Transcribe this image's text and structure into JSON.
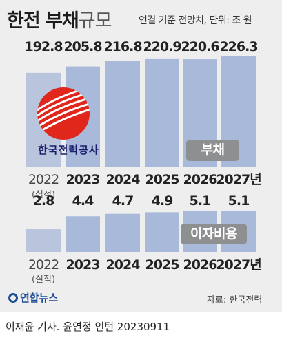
{
  "title": {
    "bold": "한전 부채",
    "light": "규모"
  },
  "subtitle": "연결 기준 전망치, 단위: 조 원",
  "logo": {
    "text": "한국전력공사"
  },
  "chart_data": [
    {
      "type": "bar",
      "name_tag": "부채",
      "categories": [
        "2022",
        "2023",
        "2024",
        "2025",
        "2026",
        "2027년"
      ],
      "category_notes": [
        "(실적)",
        "",
        "",
        "",
        "",
        ""
      ],
      "values": [
        192.8,
        205.8,
        216.8,
        220.9,
        220.6,
        226.3
      ],
      "value_labels": [
        "192.8",
        "205.8",
        "216.8",
        "220.9",
        "220.6",
        "226.3"
      ],
      "colors": {
        "actual": "#b9c5dc",
        "forecast": "#a9b9da"
      }
    },
    {
      "type": "bar",
      "name_tag": "이자비용",
      "categories": [
        "2022",
        "2023",
        "2024",
        "2025",
        "2026",
        "2027년"
      ],
      "category_notes": [
        "(실적)",
        "",
        "",
        "",
        "",
        ""
      ],
      "values": [
        2.8,
        4.4,
        4.7,
        4.9,
        5.1,
        5.1
      ],
      "value_labels": [
        "2.8",
        "4.4",
        "4.7",
        "4.9",
        "5.1",
        "5.1"
      ],
      "colors": {
        "actual": "#b9c5dc",
        "forecast": "#a9b9da"
      }
    }
  ],
  "brand": "연합뉴스",
  "source": "자료: 한국전력",
  "credit": "이재윤 기자. 윤연정 인턴  20230911"
}
